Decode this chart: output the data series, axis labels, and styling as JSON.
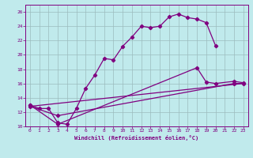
{
  "xlabel": "Windchill (Refroidissement éolien,°C)",
  "bg_color": "#c0eaec",
  "grid_color": "#9bbcbd",
  "line_color": "#800080",
  "xlim": [
    -0.5,
    23.5
  ],
  "ylim": [
    10,
    27
  ],
  "xticks": [
    0,
    1,
    2,
    3,
    4,
    5,
    6,
    7,
    8,
    9,
    10,
    11,
    12,
    13,
    14,
    15,
    16,
    17,
    18,
    19,
    20,
    21,
    22,
    23
  ],
  "yticks": [
    10,
    12,
    14,
    16,
    18,
    20,
    22,
    24,
    26
  ],
  "curve1_x": [
    0,
    1,
    2,
    3,
    4,
    5,
    6,
    7,
    8,
    9,
    10,
    11,
    12,
    13,
    14,
    15,
    16,
    17,
    18,
    19,
    20
  ],
  "curve1_y": [
    13.0,
    12.5,
    12.5,
    10.5,
    10.3,
    12.5,
    15.3,
    17.2,
    19.5,
    19.3,
    21.2,
    22.5,
    24.0,
    23.8,
    24.0,
    25.3,
    25.7,
    25.2,
    25.0,
    24.5,
    21.3
  ],
  "curve2_x": [
    0,
    3,
    18,
    19,
    20,
    22,
    23
  ],
  "curve2_y": [
    13.0,
    10.3,
    18.2,
    16.2,
    16.0,
    16.3,
    16.1
  ],
  "curve3_x": [
    0,
    3,
    22,
    23
  ],
  "curve3_y": [
    12.8,
    11.5,
    16.0,
    16.0
  ],
  "line_x": [
    0,
    23
  ],
  "line_y": [
    12.8,
    16.0
  ]
}
